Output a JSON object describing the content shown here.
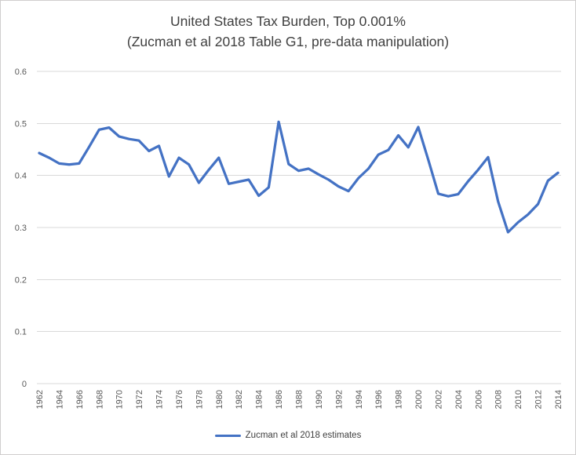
{
  "chart_data": {
    "type": "line",
    "title": "United States Tax Burden, Top 0.001%",
    "subtitle": "(Zucman et al 2018 Table G1, pre-data manipulation)",
    "x": [
      1962,
      1963,
      1964,
      1965,
      1966,
      1967,
      1968,
      1969,
      1970,
      1971,
      1972,
      1973,
      1974,
      1975,
      1976,
      1977,
      1978,
      1979,
      1980,
      1981,
      1982,
      1983,
      1984,
      1985,
      1986,
      1987,
      1988,
      1989,
      1990,
      1991,
      1992,
      1993,
      1994,
      1995,
      1996,
      1997,
      1998,
      1999,
      2000,
      2001,
      2002,
      2003,
      2004,
      2005,
      2006,
      2007,
      2008,
      2009,
      2010,
      2011,
      2012,
      2013,
      2014
    ],
    "series": [
      {
        "name": "Zucman et al 2018 estimates",
        "color": "#4472c4",
        "values": [
          0.443,
          0.434,
          0.423,
          0.421,
          0.423,
          0.455,
          0.488,
          0.492,
          0.475,
          0.47,
          0.467,
          0.447,
          0.457,
          0.398,
          0.434,
          0.421,
          0.386,
          0.411,
          0.434,
          0.384,
          0.388,
          0.392,
          0.361,
          0.377,
          0.503,
          0.422,
          0.409,
          0.413,
          0.402,
          0.392,
          0.379,
          0.37,
          0.395,
          0.413,
          0.44,
          0.449,
          0.477,
          0.454,
          0.493,
          0.43,
          0.365,
          0.36,
          0.364,
          0.389,
          0.411,
          0.435,
          0.35,
          0.291,
          0.31,
          0.325,
          0.345,
          0.39,
          0.405
        ]
      }
    ],
    "ylim": [
      0,
      0.6
    ],
    "ytick_values": [
      0,
      0.1,
      0.2,
      0.3,
      0.4,
      0.5,
      0.6
    ],
    "ytick_labels": [
      "0",
      "0.1",
      "0.2",
      "0.3",
      "0.4",
      "0.5",
      "0.6"
    ],
    "xtick_labels": [
      "1962",
      "1964",
      "1966",
      "1968",
      "1970",
      "1972",
      "1974",
      "1976",
      "1978",
      "1980",
      "1982",
      "1984",
      "1986",
      "1988",
      "1990",
      "1992",
      "1994",
      "1996",
      "1998",
      "2000",
      "2002",
      "2004",
      "2006",
      "2008",
      "2010",
      "2012",
      "2014"
    ],
    "grid": true,
    "legend_position": "bottom",
    "gridline_color": "#d9d9d9",
    "text_color": "#595959",
    "title_color": "#404040"
  }
}
